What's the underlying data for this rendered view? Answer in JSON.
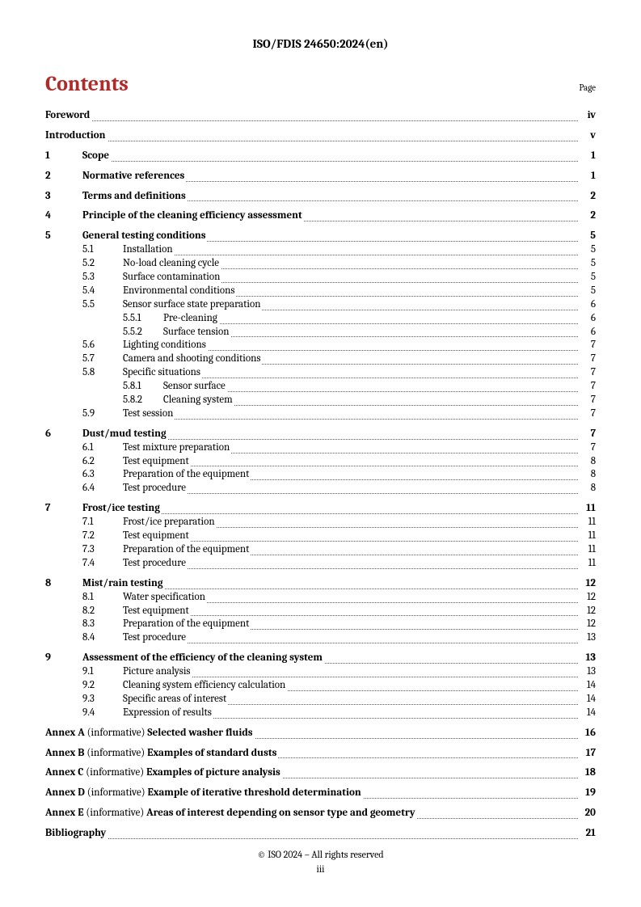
{
  "header": "ISO/FDIS 24650:2024(en)",
  "contentsTitle": "Contents",
  "pageLabel": "Page",
  "colors": {
    "accent": "#b02a2a",
    "text": "#000000",
    "background": "#ffffff",
    "dots": "#555555"
  },
  "toc": [
    {
      "type": "plain",
      "title": "Foreword",
      "page": "iv",
      "bold": true
    },
    {
      "type": "plain",
      "title": "Introduction",
      "page": "v",
      "bold": true
    },
    {
      "type": "main",
      "num": "1",
      "title": "Scope",
      "page": "1",
      "children": []
    },
    {
      "type": "main",
      "num": "2",
      "title": "Normative references",
      "page": "1",
      "children": []
    },
    {
      "type": "main",
      "num": "3",
      "title": "Terms and definitions",
      "page": "2",
      "children": []
    },
    {
      "type": "main",
      "num": "4",
      "title": "Principle of the cleaning efficiency assessment",
      "page": "2",
      "children": []
    },
    {
      "type": "main",
      "num": "5",
      "title": "General testing conditions",
      "page": "5",
      "children": [
        {
          "num": "5.1",
          "title": "Installation",
          "page": "5"
        },
        {
          "num": "5.2",
          "title": "No-load cleaning cycle",
          "page": "5"
        },
        {
          "num": "5.3",
          "title": "Surface contamination",
          "page": "5"
        },
        {
          "num": "5.4",
          "title": "Environmental conditions",
          "page": "5"
        },
        {
          "num": "5.5",
          "title": "Sensor surface state preparation",
          "page": "6",
          "children": [
            {
              "num": "5.5.1",
              "title": "Pre-cleaning",
              "page": "6"
            },
            {
              "num": "5.5.2",
              "title": "Surface tension",
              "page": "6"
            }
          ]
        },
        {
          "num": "5.6",
          "title": "Lighting conditions",
          "page": "7"
        },
        {
          "num": "5.7",
          "title": "Camera and shooting conditions",
          "page": "7"
        },
        {
          "num": "5.8",
          "title": "Specific situations",
          "page": "7",
          "children": [
            {
              "num": "5.8.1",
              "title": "Sensor surface",
              "page": "7"
            },
            {
              "num": "5.8.2",
              "title": "Cleaning system",
              "page": "7"
            }
          ]
        },
        {
          "num": "5.9",
          "title": "Test session",
          "page": "7"
        }
      ]
    },
    {
      "type": "main",
      "num": "6",
      "title": "Dust/mud testing",
      "page": "7",
      "children": [
        {
          "num": "6.1",
          "title": "Test mixture preparation",
          "page": "7"
        },
        {
          "num": "6.2",
          "title": "Test equipment",
          "page": "8"
        },
        {
          "num": "6.3",
          "title": "Preparation of the equipment",
          "page": "8"
        },
        {
          "num": "6.4",
          "title": "Test procedure",
          "page": "8"
        }
      ]
    },
    {
      "type": "main",
      "num": "7",
      "title": "Frost/ice testing",
      "page": "11",
      "children": [
        {
          "num": "7.1",
          "title": "Frost/ice preparation",
          "page": "11"
        },
        {
          "num": "7.2",
          "title": "Test equipment",
          "page": "11"
        },
        {
          "num": "7.3",
          "title": "Preparation of the equipment",
          "page": "11"
        },
        {
          "num": "7.4",
          "title": "Test procedure",
          "page": "11"
        }
      ]
    },
    {
      "type": "main",
      "num": "8",
      "title": "Mist/rain testing",
      "page": "12",
      "children": [
        {
          "num": "8.1",
          "title": "Water specification",
          "page": "12"
        },
        {
          "num": "8.2",
          "title": "Test equipment",
          "page": "12"
        },
        {
          "num": "8.3",
          "title": "Preparation of the equipment",
          "page": "12"
        },
        {
          "num": "8.4",
          "title": "Test procedure",
          "page": "13"
        }
      ]
    },
    {
      "type": "main",
      "num": "9",
      "title": "Assessment of the efficiency of the cleaning system",
      "page": "13",
      "children": [
        {
          "num": "9.1",
          "title": "Picture analysis",
          "page": "13"
        },
        {
          "num": "9.2",
          "title": "Cleaning system efficiency calculation",
          "page": "14"
        },
        {
          "num": "9.3",
          "title": "Specific areas of interest",
          "page": "14"
        },
        {
          "num": "9.4",
          "title": "Expression of results",
          "page": "14"
        }
      ]
    },
    {
      "type": "annex",
      "prefix": "Annex A",
      "note": "(informative)",
      "title": "Selected washer fluids",
      "page": "16"
    },
    {
      "type": "annex",
      "prefix": "Annex B",
      "note": "(informative)",
      "title": "Examples of standard dusts",
      "page": "17"
    },
    {
      "type": "annex",
      "prefix": "Annex C",
      "note": "(informative)",
      "title": "Examples of picture analysis",
      "page": "18"
    },
    {
      "type": "annex",
      "prefix": "Annex D",
      "note": "(informative)",
      "title": "Example of iterative threshold determination",
      "page": "19"
    },
    {
      "type": "annex",
      "prefix": "Annex E",
      "note": "(informative)",
      "title": "Areas of interest depending on sensor type and geometry",
      "page": "20"
    },
    {
      "type": "plain",
      "title": "Bibliography",
      "page": "21",
      "bold": true
    }
  ],
  "footer": {
    "copyright": "© ISO 2024 – All rights reserved",
    "pagenum": "iii"
  }
}
